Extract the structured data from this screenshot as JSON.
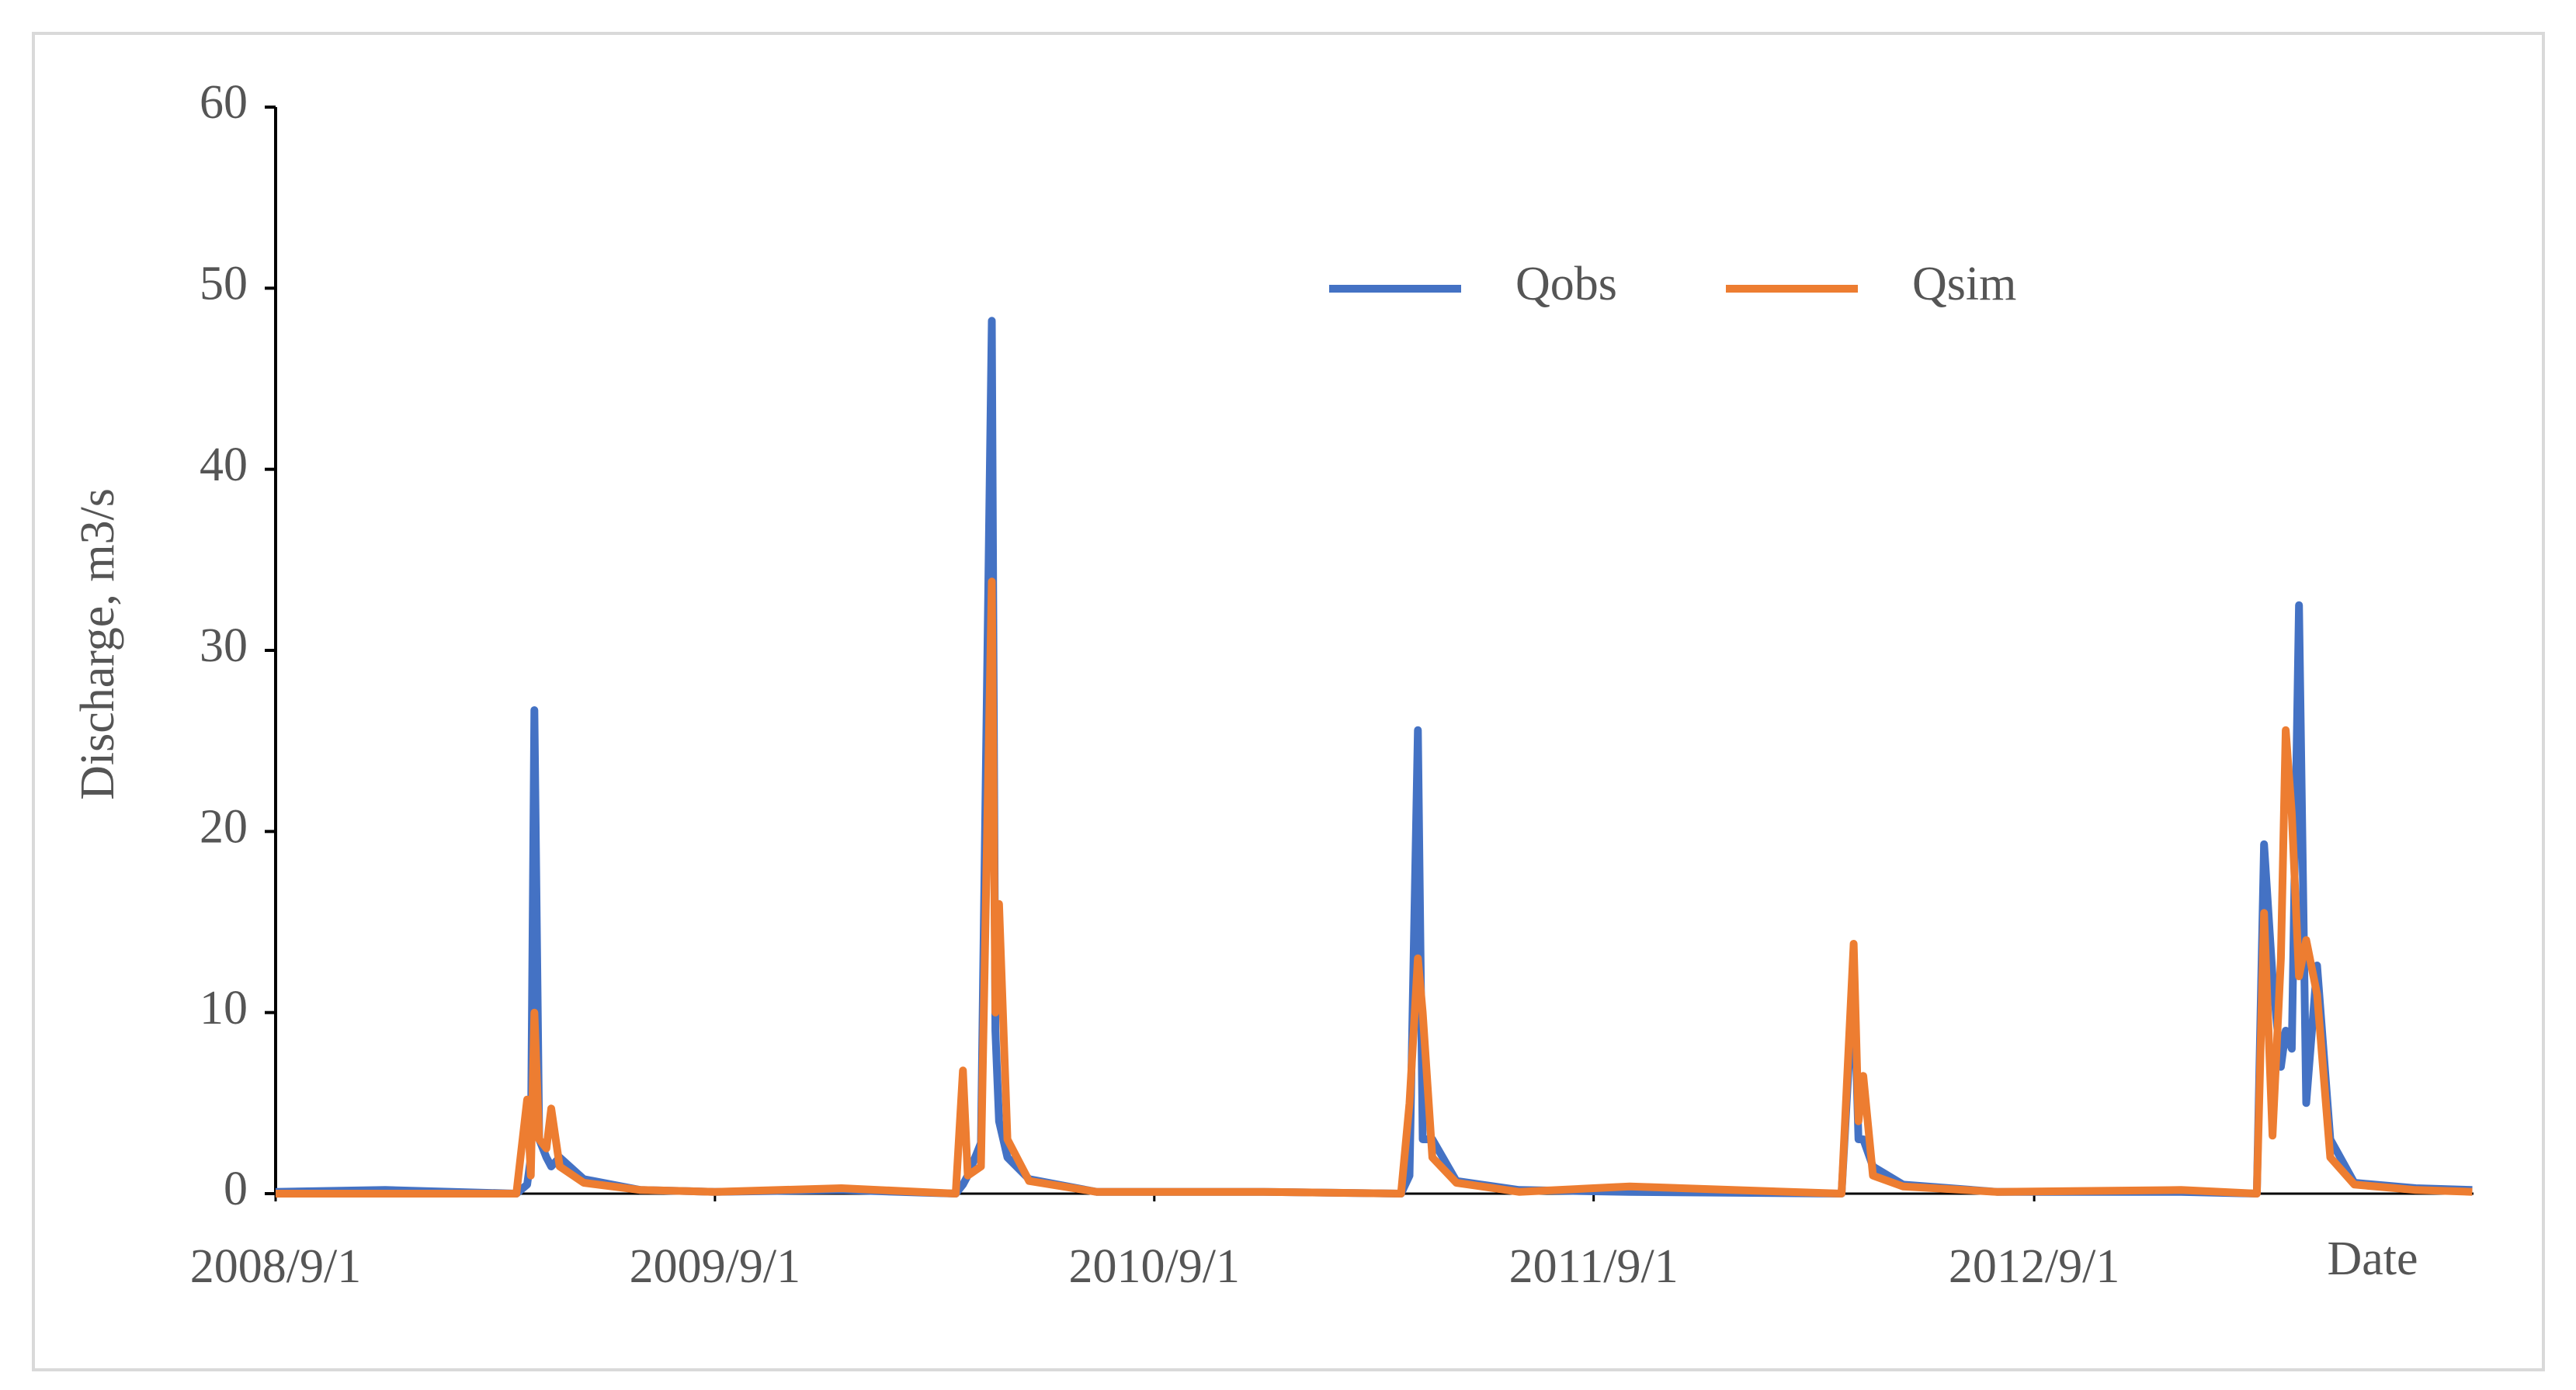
{
  "chart_data": {
    "type": "line",
    "y_label": "Discharge, m3/s",
    "x_label": "Date",
    "x": [
      "2008-09-01",
      "2008-12-01",
      "2009-03-20",
      "2009-03-29",
      "2009-04-01",
      "2009-04-04",
      "2009-04-08",
      "2009-04-14",
      "2009-04-18",
      "2009-04-25",
      "2009-05-15",
      "2009-07-01",
      "2009-09-01",
      "2009-12-15",
      "2010-03-20",
      "2010-03-26",
      "2010-03-30",
      "2010-04-10",
      "2010-04-19",
      "2010-04-22",
      "2010-04-25",
      "2010-05-02",
      "2010-05-20",
      "2010-07-15",
      "2010-12-01",
      "2011-03-25",
      "2011-04-01",
      "2011-04-08",
      "2011-04-12",
      "2011-04-20",
      "2011-05-10",
      "2011-07-01",
      "2011-10-01",
      "2012-03-25",
      "2012-04-04",
      "2012-04-08",
      "2012-04-12",
      "2012-04-20",
      "2012-05-15",
      "2012-08-01",
      "2013-01-01",
      "2013-03-05",
      "2013-03-11",
      "2013-03-18",
      "2013-03-25",
      "2013-03-29",
      "2013-04-03",
      "2013-04-09",
      "2013-04-15",
      "2013-04-24",
      "2013-05-05",
      "2013-05-25",
      "2013-07-15",
      "2013-08-31"
    ],
    "series": [
      {
        "name": "Qobs",
        "color": "#4472c4",
        "values": [
          0.1,
          0.2,
          0,
          0.5,
          2,
          26.7,
          3,
          2,
          1.5,
          2,
          0.8,
          0.2,
          0.1,
          0.2,
          0,
          0.5,
          1.0,
          2.8,
          48.2,
          9,
          4,
          2,
          0.8,
          0.1,
          0.1,
          0,
          1,
          25.6,
          3,
          3,
          0.7,
          0.2,
          0.1,
          0,
          12,
          3,
          3,
          1.5,
          0.5,
          0.1,
          0.1,
          0,
          19.3,
          12,
          7,
          9,
          8,
          32.5,
          5,
          12.6,
          3,
          0.6,
          0.3,
          0.2
        ]
      },
      {
        "name": "Qsim",
        "color": "#ed7d31",
        "values": [
          0,
          0,
          0,
          5.2,
          1,
          10,
          3,
          2.5,
          4.7,
          1.5,
          0.6,
          0.2,
          0.1,
          0.3,
          0,
          6.8,
          1.0,
          1.5,
          33.8,
          10,
          16,
          3,
          0.7,
          0.1,
          0.1,
          0,
          5,
          13,
          10,
          2,
          0.6,
          0.1,
          0.4,
          0,
          13.8,
          4,
          6.5,
          1.0,
          0.4,
          0.1,
          0.2,
          0,
          15.5,
          3.2,
          13,
          25.6,
          21,
          12,
          14,
          11,
          2,
          0.5,
          0.2,
          0.1
        ]
      }
    ],
    "xlim": [
      "2008-09-01",
      "2013-09-01"
    ],
    "xticks": [
      {
        "value": "2008-09-01",
        "label": "2008/9/1"
      },
      {
        "value": "2009-09-01",
        "label": "2009/9/1"
      },
      {
        "value": "2010-09-01",
        "label": "2010/9/1"
      },
      {
        "value": "2011-09-01",
        "label": "2011/9/1"
      },
      {
        "value": "2012-09-01",
        "label": "2012/9/1"
      }
    ],
    "ylim": [
      0,
      60
    ],
    "yticks": [
      0,
      10,
      20,
      30,
      40,
      50,
      60
    ],
    "grid": false,
    "legend": "top"
  }
}
